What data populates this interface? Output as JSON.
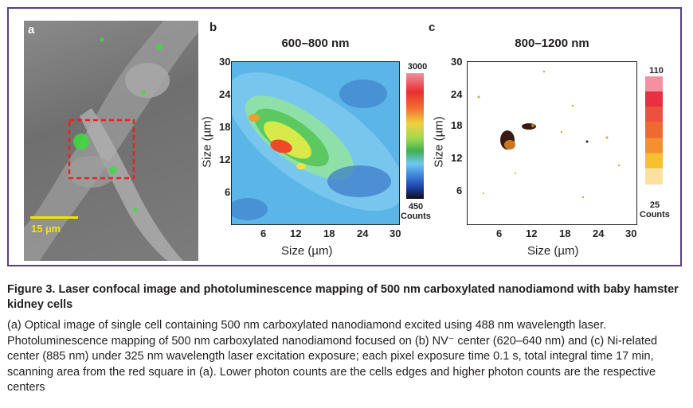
{
  "figure": {
    "panel_a": {
      "label": "a",
      "scale_bar": "15 µm"
    },
    "panel_b": {
      "label": "b",
      "title": "600–800 nm",
      "xlabel": "Size (µm)",
      "ylabel": "Size (µm)",
      "x_ticks": [
        "6",
        "12",
        "18",
        "24",
        "30"
      ],
      "y_ticks": [
        "30",
        "24",
        "18",
        "12",
        "6"
      ],
      "colorbar_max": "3000",
      "colorbar_min": "450",
      "colorbar_unit": "Counts"
    },
    "panel_c": {
      "label": "c",
      "title": "800–1200 nm",
      "xlabel": "Size (µm)",
      "ylabel": "Size (µm)",
      "x_ticks": [
        "6",
        "12",
        "18",
        "24",
        "30"
      ],
      "y_ticks": [
        "30",
        "24",
        "18",
        "12",
        "6"
      ],
      "colorbar_max": "110",
      "colorbar_min": "25",
      "colorbar_unit": "Counts"
    },
    "colors": {
      "frame": "#5a3d8a",
      "red_square": "#e8231e",
      "scale_bar": "#f5e400"
    }
  },
  "caption": {
    "title": "Figure 3. Laser confocal image and photoluminescence mapping of 500 nm carboxylated  nanodiamond with baby hamster kidney cells",
    "body": "(a) Optical image of single cell containing 500 nm carboxylated nanodiamond excited using 488 nm wavelength laser. Photoluminescence mapping of 500 nm carboxylated nanodiamond focused on (b) NV⁻ center (620–640 nm) and (c) Ni-related center (885 nm) under 325 nm wavelength laser excitation exposure; each pixel exposure time 0.1 s, total integral time 17 min, scanning area from the red square in (a). Lower photon counts are the cells edges and higher photon counts are the respective centers"
  }
}
